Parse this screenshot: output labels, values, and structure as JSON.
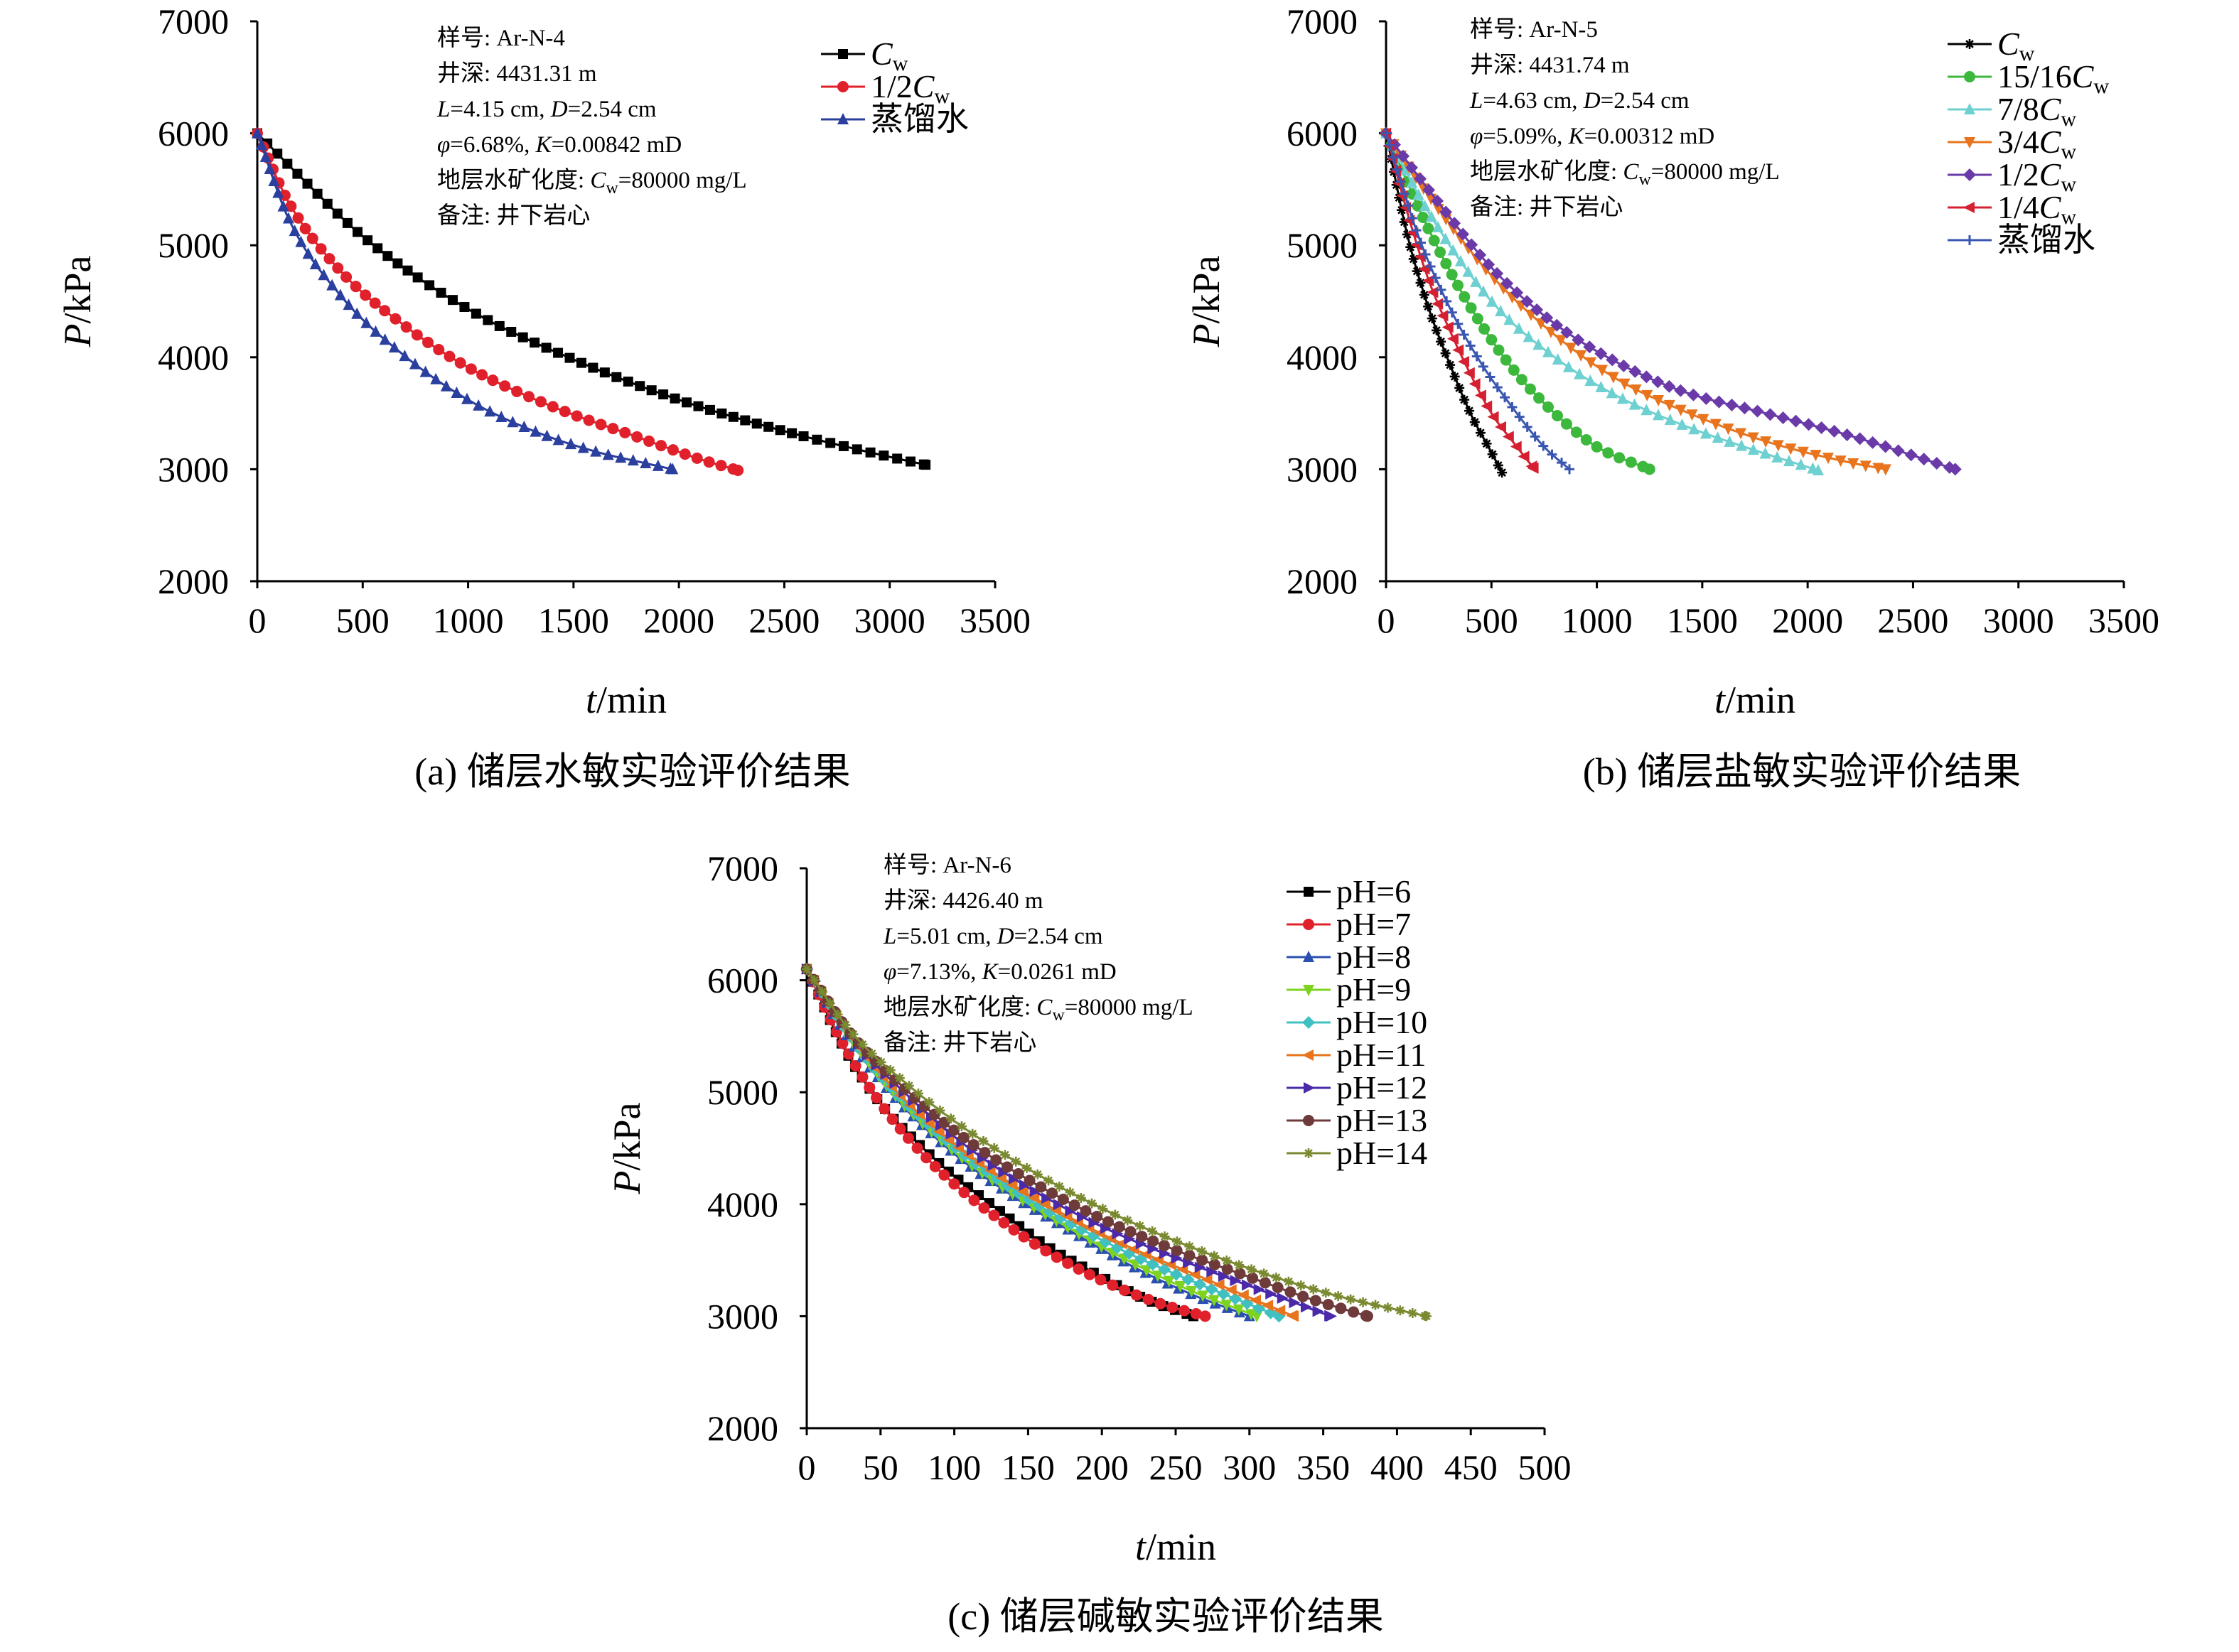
{
  "figure": {
    "captions": [
      "(a) 储层水敏实验评价结果",
      "(b) 储层盐敏实验评价结果",
      "(c) 储层碱敏实验评价结果"
    ]
  },
  "chart_data": [
    {
      "id": "a",
      "type": "line",
      "caption": "(a) 储层水敏实验评价结果",
      "xlabel": "t/min",
      "ylabel": "P/kPa",
      "xlim": [
        0,
        3500
      ],
      "ylim": [
        2000,
        7000
      ],
      "xticks": [
        "0",
        "500",
        "1000",
        "1500",
        "2000",
        "2500",
        "3000",
        "3500"
      ],
      "yticks": [
        "2000",
        "3000",
        "4000",
        "5000",
        "6000",
        "7000"
      ],
      "grid": false,
      "legend_position": "top-right",
      "info": [
        "样号: Ar-N-4",
        "井深: 4431.31 m",
        "L=4.15 cm, D=2.54 cm",
        "φ=6.68%, K=0.00842 mD",
        "地层水矿化度: Cw=80000 mg/L",
        "备注: 井下岩心"
      ],
      "series": [
        {
          "name": "Cw",
          "color": "#000000",
          "marker": "square",
          "x": [
            0,
            200,
            500,
            1000,
            1500,
            2000,
            2500,
            3000,
            3170
          ],
          "y": [
            6000,
            5620,
            5080,
            4430,
            3980,
            3620,
            3340,
            3110,
            3040
          ]
        },
        {
          "name": "1/2Cw",
          "color": "#e0202a",
          "marker": "circle",
          "x": [
            0,
            150,
            400,
            700,
            1000,
            1400,
            1800,
            2100,
            2280
          ],
          "y": [
            6000,
            5380,
            4760,
            4280,
            3910,
            3560,
            3290,
            3090,
            2990
          ]
        },
        {
          "name": "蒸馏水",
          "color": "#2a3f9e",
          "marker": "triangle",
          "x": [
            0,
            150,
            400,
            700,
            1000,
            1300,
            1600,
            1850,
            1970
          ],
          "y": [
            6000,
            5230,
            4540,
            4010,
            3620,
            3350,
            3160,
            3050,
            3000
          ]
        }
      ]
    },
    {
      "id": "b",
      "type": "line",
      "caption": "(b) 储层盐敏实验评价结果",
      "xlabel": "t/min",
      "ylabel": "P/kPa",
      "xlim": [
        0,
        3500
      ],
      "ylim": [
        2000,
        7000
      ],
      "xticks": [
        "0",
        "500",
        "1000",
        "1500",
        "2000",
        "2500",
        "3000",
        "3500"
      ],
      "yticks": [
        "2000",
        "3000",
        "4000",
        "5000",
        "6000",
        "7000"
      ],
      "grid": false,
      "legend_position": "top-right",
      "info": [
        "样号: Ar-N-5",
        "井深: 4431.74 m",
        "L=4.63 cm, D=2.54 cm",
        "φ=5.09%, K=0.00312 mD",
        "地层水矿化度: Cw=80000 mg/L",
        "备注: 井下岩心"
      ],
      "series": [
        {
          "name": "Cw",
          "color": "#000000",
          "marker": "star",
          "x": [
            0,
            100,
            200,
            300,
            400,
            500,
            550
          ],
          "y": [
            6000,
            5100,
            4450,
            3950,
            3500,
            3150,
            2970
          ]
        },
        {
          "name": "15/16Cw",
          "color": "#3cb83c",
          "marker": "circle",
          "x": [
            0,
            200,
            400,
            600,
            800,
            1000,
            1250
          ],
          "y": [
            6000,
            5150,
            4450,
            3900,
            3500,
            3200,
            3000
          ]
        },
        {
          "name": "7/8Cw",
          "color": "#6ed0d0",
          "marker": "triangle",
          "x": [
            0,
            200,
            500,
            800,
            1100,
            1400,
            1700,
            2050
          ],
          "y": [
            6000,
            5300,
            4500,
            4000,
            3650,
            3400,
            3200,
            2990
          ]
        },
        {
          "name": "3/4Cw",
          "color": "#e8741e",
          "marker": "triangle-down",
          "x": [
            0,
            200,
            500,
            800,
            1100,
            1400,
            1800,
            2200,
            2370
          ],
          "y": [
            6000,
            5450,
            4730,
            4200,
            3800,
            3530,
            3250,
            3060,
            3000
          ]
        },
        {
          "name": "1/2Cw",
          "color": "#6a3aa8",
          "marker": "diamond",
          "x": [
            0,
            200,
            500,
            800,
            1100,
            1400,
            1800,
            2200,
            2700
          ],
          "y": [
            6000,
            5500,
            4800,
            4300,
            3950,
            3700,
            3500,
            3300,
            3000
          ]
        },
        {
          "name": "1/4Cw",
          "color": "#d42030",
          "marker": "triangle-left",
          "x": [
            0,
            100,
            200,
            300,
            400,
            500,
            600,
            700
          ],
          "y": [
            6000,
            5300,
            4700,
            4250,
            3850,
            3500,
            3250,
            3010
          ]
        },
        {
          "name": "蒸馏水",
          "color": "#3a56b0",
          "marker": "plus",
          "x": [
            0,
            150,
            300,
            450,
            600,
            750,
            870
          ],
          "y": [
            6000,
            5100,
            4450,
            3950,
            3550,
            3200,
            3000
          ]
        }
      ]
    },
    {
      "id": "c",
      "type": "line",
      "caption": "(c) 储层碱敏实验评价结果",
      "xlabel": "t/min",
      "ylabel": "P/kPa",
      "xlim": [
        0,
        500
      ],
      "ylim": [
        2000,
        7000
      ],
      "xticks": [
        "0",
        "50",
        "100",
        "150",
        "200",
        "250",
        "300",
        "350",
        "400",
        "450",
        "500"
      ],
      "yticks": [
        "2000",
        "3000",
        "4000",
        "5000",
        "6000",
        "7000"
      ],
      "grid": false,
      "legend_position": "top-right",
      "info": [
        "样号: Ar-N-6",
        "井深: 4426.40 m",
        "L=5.01 cm, D=2.54 cm",
        "φ=7.13%, K=0.0261 mD",
        "地层水矿化度: Cw=80000 mg/L",
        "备注: 井下岩心"
      ],
      "series": [
        {
          "name": "pH=6",
          "color": "#000000",
          "marker": "square",
          "x": [
            0,
            25,
            50,
            75,
            100,
            130,
            160,
            200,
            230,
            262
          ],
          "y": [
            6100,
            5400,
            4900,
            4550,
            4250,
            3950,
            3650,
            3350,
            3150,
            3000
          ]
        },
        {
          "name": "pH=7",
          "color": "#e0202a",
          "marker": "circle",
          "x": [
            0,
            25,
            50,
            75,
            100,
            130,
            160,
            200,
            240,
            270
          ],
          "y": [
            6100,
            5420,
            4900,
            4500,
            4180,
            3870,
            3600,
            3320,
            3110,
            3000
          ]
        },
        {
          "name": "pH=8",
          "color": "#2a4fb0",
          "marker": "triangle",
          "x": [
            0,
            30,
            60,
            100,
            140,
            180,
            220,
            260,
            300
          ],
          "y": [
            6100,
            5450,
            4950,
            4450,
            4070,
            3750,
            3450,
            3200,
            3000
          ]
        },
        {
          "name": "pH=9",
          "color": "#7ed321",
          "marker": "triangle-down",
          "x": [
            0,
            30,
            60,
            100,
            140,
            180,
            220,
            260,
            305
          ],
          "y": [
            6100,
            5470,
            4970,
            4470,
            4090,
            3770,
            3480,
            3230,
            3000
          ]
        },
        {
          "name": "pH=10",
          "color": "#40c0c0",
          "marker": "diamond",
          "x": [
            0,
            30,
            60,
            100,
            140,
            180,
            220,
            260,
            320
          ],
          "y": [
            6100,
            5480,
            5000,
            4510,
            4130,
            3820,
            3550,
            3320,
            3000
          ]
        },
        {
          "name": "pH=11",
          "color": "#e8741e",
          "marker": "triangle-left",
          "x": [
            0,
            30,
            60,
            100,
            140,
            180,
            220,
            260,
            330
          ],
          "y": [
            6100,
            5490,
            5020,
            4540,
            4170,
            3870,
            3610,
            3390,
            3000
          ]
        },
        {
          "name": "pH=12",
          "color": "#4a2aa8",
          "marker": "triangle-right",
          "x": [
            0,
            30,
            70,
            110,
            150,
            200,
            250,
            300,
            355
          ],
          "y": [
            6100,
            5500,
            4950,
            4500,
            4150,
            3800,
            3520,
            3270,
            3000
          ]
        },
        {
          "name": "pH=13",
          "color": "#6e3a3a",
          "marker": "circle",
          "x": [
            0,
            30,
            70,
            110,
            150,
            200,
            250,
            300,
            340,
            380
          ],
          "y": [
            6100,
            5520,
            4990,
            4560,
            4220,
            3870,
            3590,
            3350,
            3160,
            3000
          ]
        },
        {
          "name": "pH=14",
          "color": "#7a8a30",
          "marker": "star",
          "x": [
            0,
            30,
            70,
            110,
            160,
            210,
            260,
            310,
            360,
            420
          ],
          "y": [
            6100,
            5540,
            5050,
            4650,
            4240,
            3900,
            3620,
            3380,
            3180,
            3000
          ]
        }
      ]
    }
  ]
}
